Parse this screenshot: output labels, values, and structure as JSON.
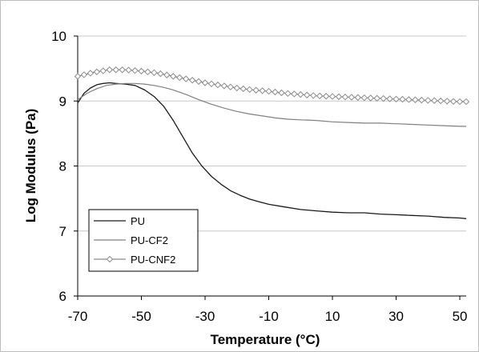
{
  "chart_data": {
    "type": "line",
    "title": "",
    "xlabel": "Temperature (°C)",
    "ylabel": "Log Modulus (Pa)",
    "xlim": [
      -70,
      52
    ],
    "ylim": [
      6,
      10
    ],
    "x_ticks": [
      "-70",
      "-50",
      "-30",
      "-10",
      "10",
      "30",
      "50"
    ],
    "y_ticks": [
      "6",
      "7",
      "8",
      "9",
      "10"
    ],
    "grid": "horizontal",
    "legend_position": "bottom-left",
    "series": [
      {
        "name": "PU",
        "color": "#1a1a1a",
        "marker": "none",
        "x": [
          -70,
          -68,
          -66,
          -64,
          -62,
          -60,
          -58,
          -55,
          -52,
          -49,
          -46,
          -43,
          -40,
          -37,
          -34,
          -31,
          -28,
          -25,
          -22,
          -19,
          -16,
          -13,
          -10,
          -5,
          0,
          5,
          10,
          15,
          20,
          25,
          30,
          35,
          40,
          45,
          50,
          52
        ],
        "y": [
          8.97,
          9.12,
          9.2,
          9.25,
          9.27,
          9.28,
          9.27,
          9.26,
          9.24,
          9.17,
          9.07,
          8.92,
          8.7,
          8.45,
          8.2,
          8.0,
          7.84,
          7.72,
          7.62,
          7.55,
          7.49,
          7.45,
          7.41,
          7.37,
          7.33,
          7.31,
          7.29,
          7.28,
          7.28,
          7.26,
          7.25,
          7.24,
          7.23,
          7.21,
          7.2,
          7.19
        ]
      },
      {
        "name": "PU-CF2",
        "color": "#808080",
        "marker": "none",
        "x": [
          -70,
          -67,
          -64,
          -61,
          -58,
          -55,
          -52,
          -49,
          -46,
          -43,
          -40,
          -36,
          -32,
          -28,
          -24,
          -20,
          -16,
          -12,
          -8,
          -4,
          0,
          5,
          10,
          15,
          20,
          25,
          30,
          35,
          40,
          45,
          50,
          52
        ],
        "y": [
          9.02,
          9.12,
          9.19,
          9.24,
          9.26,
          9.27,
          9.27,
          9.26,
          9.24,
          9.21,
          9.17,
          9.1,
          9.02,
          8.95,
          8.89,
          8.84,
          8.8,
          8.77,
          8.74,
          8.72,
          8.71,
          8.7,
          8.68,
          8.67,
          8.66,
          8.66,
          8.65,
          8.64,
          8.63,
          8.62,
          8.61,
          8.61
        ]
      },
      {
        "name": "PU-CNF2",
        "color": "#8c8c8c",
        "marker": "diamond",
        "x": [
          -70,
          -65,
          -60,
          -55,
          -50,
          -45,
          -40,
          -35,
          -30,
          -25,
          -20,
          -15,
          -10,
          -5,
          0,
          5,
          10,
          15,
          20,
          25,
          30,
          35,
          40,
          45,
          50,
          52
        ],
        "y": [
          9.38,
          9.44,
          9.48,
          9.48,
          9.46,
          9.43,
          9.38,
          9.33,
          9.28,
          9.24,
          9.2,
          9.17,
          9.15,
          9.12,
          9.1,
          9.08,
          9.07,
          9.06,
          9.05,
          9.04,
          9.03,
          9.02,
          9.01,
          9.0,
          8.99,
          8.99
        ]
      }
    ]
  }
}
